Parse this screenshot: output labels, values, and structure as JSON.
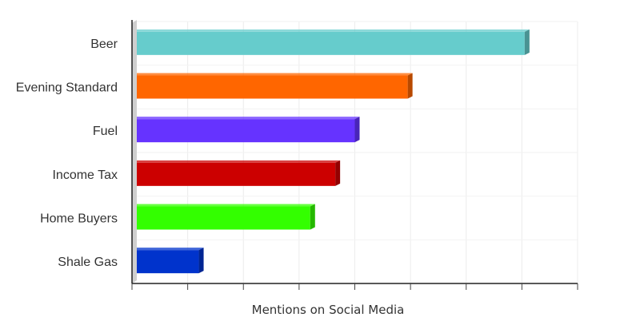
{
  "chart_data": {
    "type": "bar",
    "orientation": "horizontal",
    "categories": [
      "Beer",
      "Evening Standard",
      "Fuel",
      "Income Tax",
      "Home Buyers",
      "Shale Gas"
    ],
    "values": [
      7.05,
      4.95,
      4.0,
      3.65,
      3.2,
      1.2
    ],
    "colors": [
      "#66cccc",
      "#ff6600",
      "#6633ff",
      "#cc0000",
      "#33ff00",
      "#0033cc"
    ],
    "xlabel": "Mentions on Social Media",
    "ylabel": "",
    "xlim": [
      0,
      8
    ],
    "x_tick_count": 9,
    "x_tick_labels_shown": false,
    "grid": true,
    "style": "3d-bars"
  }
}
